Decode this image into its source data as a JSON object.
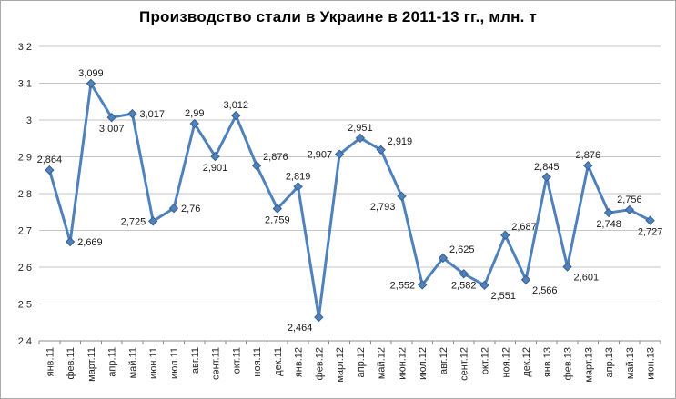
{
  "chart_data": {
    "type": "line",
    "title": "Производство стали в Украине в 2011-13 гг., млн. т",
    "categories": [
      "янв.11",
      "фев.11",
      "март.11",
      "апр.11",
      "май.11",
      "июн.11",
      "июл.11",
      "авг.11",
      "сент.11",
      "окт.11",
      "ноя.11",
      "дек.11",
      "янв.12",
      "фев.12",
      "март.12",
      "апр.12",
      "май.12",
      "июн.12",
      "июл.12",
      "авг.12",
      "сент.12",
      "окт.12",
      "ноя.12",
      "дек.12",
      "янв.13",
      "фев.13",
      "март.13",
      "апр.13",
      "май.13",
      "июн.13"
    ],
    "values": [
      2.864,
      2.669,
      3.099,
      3.007,
      3.017,
      2.725,
      2.76,
      2.99,
      2.901,
      3.012,
      2.876,
      2.759,
      2.819,
      2.464,
      2.907,
      2.951,
      2.919,
      2.793,
      2.552,
      2.625,
      2.582,
      2.551,
      2.687,
      2.566,
      2.845,
      2.601,
      2.876,
      2.748,
      2.756,
      2.727
    ],
    "point_labels": [
      "2,864",
      "2,669",
      "3,099",
      "3,007",
      "3,017",
      "2,725",
      "2,76",
      "2,99",
      "2,901",
      "3,012",
      "2,876",
      "2,759",
      "2,819",
      "2,464",
      "2,907",
      "2,951",
      "2,919",
      "2,793",
      "2,552",
      "2,625",
      "2,582",
      "2,551",
      "2,687",
      "2,566",
      "2,845",
      "2,601",
      "2,876",
      "2,748",
      "2,756",
      "2,727"
    ],
    "label_positions": [
      "above",
      "right",
      "above",
      "below",
      "right",
      "left",
      "right",
      "above",
      "below",
      "above",
      "above-right",
      "below",
      "above",
      "below-left",
      "left",
      "above",
      "above-right",
      "below-left",
      "left",
      "above-right",
      "below",
      "below-right",
      "above-right",
      "below-right",
      "above",
      "below-right",
      "above",
      "below",
      "above",
      "below"
    ],
    "ylim": [
      2.4,
      3.2
    ],
    "ytick_labels": [
      "2,4",
      "2,5",
      "2,6",
      "2,7",
      "2,8",
      "2,9",
      "3",
      "3,1",
      "3,2"
    ],
    "xlabel": "",
    "ylabel": "",
    "grid": true,
    "legend": "none",
    "marker": "diamond",
    "colors": {
      "line": "#4F81BD",
      "marker": "#4F81BD",
      "marker_edge": "#38618C",
      "grid": "#C6C6C6",
      "axis": "#8E8E8E",
      "tick_text": "#262626",
      "data_label_text": "#1a1a1a",
      "title_text": "#000000",
      "background": "#FFFFFF",
      "border": "#A9A9A9"
    }
  }
}
